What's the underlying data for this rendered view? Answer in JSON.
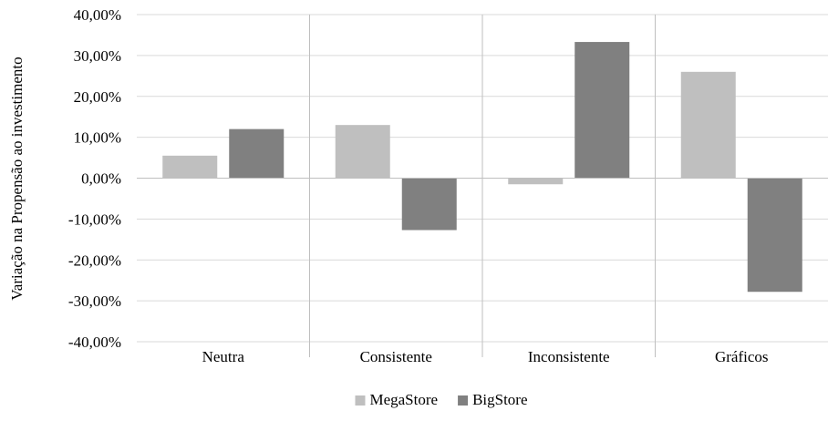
{
  "colors": {
    "background": "#ffffff",
    "grid": "#d9d9d9",
    "axis": "#bfbfbf",
    "text": "#000000"
  },
  "chart_data": {
    "type": "bar",
    "title": "",
    "xlabel": "",
    "ylabel": "Variação na Propensão ao investimento",
    "categories": [
      "Neutra",
      "Consistente",
      "Inconsistente",
      "Gráficos"
    ],
    "series": [
      {
        "name": "MegaStore",
        "color": "#bfbfbf",
        "values": [
          0.055,
          0.13,
          -0.015,
          0.26
        ]
      },
      {
        "name": "BigStore",
        "color": "#808080",
        "values": [
          0.12,
          -0.127,
          0.333,
          -0.278
        ]
      }
    ],
    "ylim": [
      -0.4,
      0.4
    ],
    "yticks": [
      -0.4,
      -0.3,
      -0.2,
      -0.1,
      0.0,
      0.1,
      0.2,
      0.3,
      0.4
    ],
    "ytick_labels": [
      "-40,00%",
      "-30,00%",
      "-20,00%",
      "-10,00%",
      "0,00%",
      "10,00%",
      "20,00%",
      "30,00%",
      "40,00%"
    ],
    "grid": true,
    "legend": "bottom-center"
  }
}
